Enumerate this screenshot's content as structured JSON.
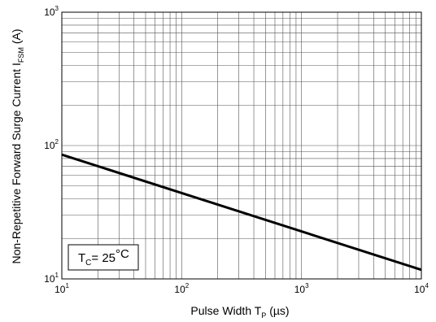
{
  "chart_data": {
    "type": "line",
    "xscale": "log",
    "yscale": "log",
    "xlim": [
      10,
      10000
    ],
    "ylim": [
      10,
      1000
    ],
    "grid": true,
    "x_ticks": [
      {
        "base": "10",
        "exp": "1"
      },
      {
        "base": "10",
        "exp": "2"
      },
      {
        "base": "10",
        "exp": "3"
      },
      {
        "base": "10",
        "exp": "4"
      }
    ],
    "y_ticks": [
      {
        "base": "10",
        "exp": "1"
      },
      {
        "base": "10",
        "exp": "2"
      },
      {
        "base": "10",
        "exp": "3"
      }
    ],
    "xlabel": {
      "main": "Pulse Width T",
      "sub": "P",
      "unit": " (µs)"
    },
    "ylabel": {
      "main": "Non-Repetitive Forward Surge Current I",
      "sub": "FSM",
      "unit": " (A)"
    },
    "annotation": {
      "prefix": "T",
      "sub": "C",
      "value": "= 25",
      "unit": "°C"
    },
    "series": [
      {
        "color": "#000000",
        "x": [
          10,
          10000
        ],
        "y": [
          85.5,
          11.7
        ]
      }
    ]
  }
}
